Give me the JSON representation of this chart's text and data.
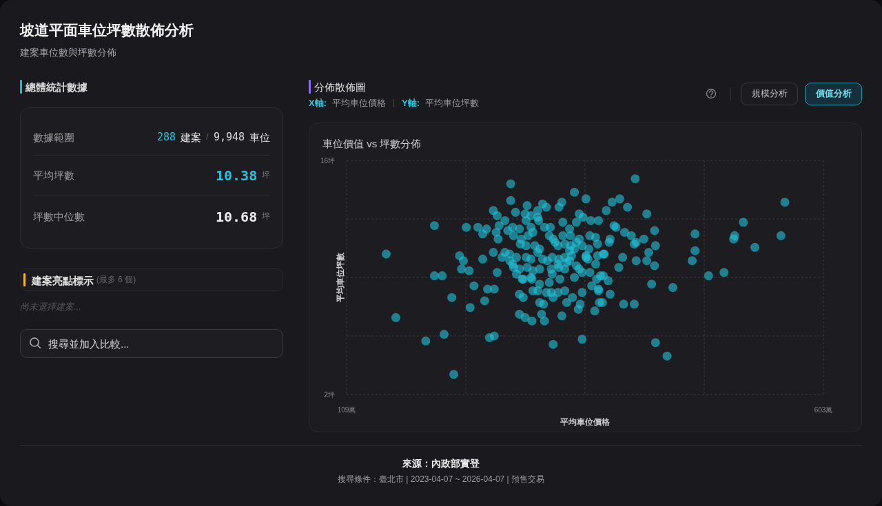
{
  "chart_data": [
    {
      "type": "other",
      "title": "坡道平面車位坪數散佈分析",
      "subtitle": "建案車位數與坪數分佈",
      "annotations": [
        "總體統計數據",
        "數據範圍",
        "288",
        "建案",
        "/",
        "9,948",
        "車位",
        "平均坪數",
        "10.38",
        "坪",
        "坪數中位數",
        "10.68",
        "坪",
        "建案亮點標示",
        "(最多 6 個)",
        "尚未選擇建案...",
        "搜尋並加入比較..."
      ]
    },
    {
      "type": "scatter",
      "title": "車位價值 vs 坪數分佈",
      "xlabel": "平均車位價格",
      "ylabel": "平均車位坪數",
      "xlim": [
        109,
        603
      ],
      "ylim": [
        2,
        16
      ],
      "xticks": [
        {
          "value": 109,
          "label": "109萬"
        },
        {
          "value": 232.5,
          "label": null
        },
        {
          "value": 356,
          "label": null
        },
        {
          "value": 479.5,
          "label": null
        },
        {
          "value": 603,
          "label": "603萬"
        }
      ],
      "yticks": [
        {
          "value": 2,
          "label": "2坪"
        },
        {
          "value": 5.5,
          "label": null
        },
        {
          "value": 9,
          "label": null
        },
        {
          "value": 12.5,
          "label": null
        },
        {
          "value": 16,
          "label": "16坪"
        }
      ],
      "grid": true,
      "marker": "circle",
      "color": "#22c3da",
      "x": [
        200,
        150,
        233,
        245,
        261,
        265,
        279,
        279,
        226,
        230,
        250,
        261,
        228,
        236,
        265,
        200,
        208,
        241,
        255,
        262,
        218,
        252,
        237,
        160,
        210,
        191,
        257,
        262,
        220,
        563,
        520,
        470,
        511,
        510,
        559,
        532,
        470,
        467,
        500,
        484,
        447,
        441,
        408,
        345,
        357,
        384,
        392,
        400,
        378,
        420,
        428,
        386,
        388,
        397,
        404,
        417,
        409,
        407,
        429,
        382,
        381,
        422,
        376,
        395,
        420,
        409,
        428,
        391,
        425,
        296,
        284,
        312,
        316,
        307,
        332,
        329,
        333,
        347,
        350,
        354,
        362,
        370,
        361,
        367,
        369,
        375,
        369,
        367,
        361,
        353,
        372,
        375,
        368,
        380,
        363,
        370,
        345,
        357,
        342,
        345,
        360,
        322,
        330,
        319,
        309,
        301,
        291,
        282,
        335,
        337,
        328,
        317,
        288,
        292,
        302,
        307,
        316,
        321,
        328,
        335,
        323,
        309,
        313,
        337,
        343,
        353,
        351,
        349,
        370,
        382,
        371,
        374,
        366,
        396,
        407,
        288,
        294,
        301,
        311,
        314,
        332,
        323,
        353,
        429,
        294,
        300,
        295,
        307,
        308,
        281,
        288,
        282,
        300,
        302,
        297,
        314,
        320,
        319,
        323,
        333,
        340,
        341,
        350,
        347,
        353,
        290,
        289,
        295,
        304,
        309,
        307,
        325,
        328,
        335,
        341,
        340,
        278,
        285,
        295,
        300,
        312,
        322,
        329,
        335,
        340,
        281,
        288,
        296,
        302,
        300,
        309,
        292,
        285,
        321,
        329,
        347,
        350,
        357,
        359,
        254,
        250,
        264,
        267,
        273,
        266,
        276,
        270,
        273,
        278
      ],
      "values": [
        12.1,
        10.4,
        12.0,
        12.0,
        13.0,
        12.7,
        14.6,
        13.6,
        10.3,
        10.0,
        10.1,
        10.5,
        9.5,
        9.4,
        9.3,
        9.1,
        9.1,
        8.5,
        8.3,
        8.3,
        7.8,
        7.6,
        7.2,
        6.6,
        5.6,
        5.2,
        5.4,
        5.5,
        3.2,
        13.5,
        12.3,
        11.6,
        11.5,
        11.3,
        11.5,
        10.8,
        10.6,
        10.0,
        9.3,
        9.1,
        8.4,
        4.3,
        14.9,
        14.1,
        13.7,
        13.5,
        13.7,
        13.2,
        13.0,
        12.8,
        11.8,
        12.1,
        12.0,
        11.7,
        11.5,
        11.3,
        11.1,
        11.0,
        10.9,
        11.3,
        11.1,
        10.5,
        10.4,
        10.2,
        10.0,
        10.0,
        9.7,
        9.6,
        8.6,
        13.3,
        12.9,
        13.4,
        13.2,
        13.0,
        13.5,
        13.2,
        12.3,
        12.3,
        12.8,
        12.6,
        12.4,
        12.4,
        11.5,
        11.4,
        11.0,
        10.4,
        10.3,
        9.8,
        9.3,
        9.3,
        9.1,
        9.1,
        8.9,
        8.8,
        8.5,
        8.3,
        9.0,
        10.2,
        10.3,
        10.7,
        10.7,
        9.2,
        8.9,
        8.7,
        8.6,
        8.9,
        8.9,
        9.6,
        9.5,
        9.9,
        9.8,
        10.0,
        8.0,
        7.8,
        8.2,
        8.2,
        8.1,
        8.1,
        8.1,
        8.2,
        7.8,
        7.5,
        7.4,
        7.5,
        7.8,
        8.1,
        7.4,
        7.1,
        8.2,
        8.0,
        7.5,
        7.5,
        7.0,
        7.4,
        7.4,
        6.8,
        6.6,
        6.4,
        6.8,
        6.4,
        6.7,
        5.0,
        5.3,
        5.1,
        12.8,
        12.7,
        12.4,
        12.6,
        12.4,
        12.0,
        11.9,
        11.5,
        12.0,
        11.7,
        11.5,
        12.0,
        12.0,
        11.5,
        11.3,
        11.5,
        11.9,
        11.5,
        11.3,
        11.1,
        10.9,
        11.3,
        11.0,
        10.9,
        10.9,
        10.7,
        10.5,
        11.1,
        10.9,
        11.0,
        10.9,
        10.6,
        10.4,
        10.2,
        10.2,
        10.1,
        10.1,
        10.2,
        10.1,
        10.2,
        10.0,
        9.8,
        9.5,
        9.6,
        9.4,
        9.0,
        9.5,
        8.9,
        9.2,
        9.5,
        9.6,
        9.7,
        9.5,
        10.3,
        10.1,
        11.9,
        11.6,
        11.7,
        12.1,
        12.4,
        11.3,
        11.8,
        10.2,
        10.5,
        10.0
      ],
      "annotations": [
        "分佈散佈圖",
        "X軸:",
        "平均車位價格",
        "|",
        "Y軸:",
        "平均車位坪數",
        "規模分析",
        "價值分析",
        "來源：內政部實登",
        "搜尋條件：臺北市 | 2023-04-07 ~ 2026-04-07 | 預售交易"
      ]
    }
  ]
}
